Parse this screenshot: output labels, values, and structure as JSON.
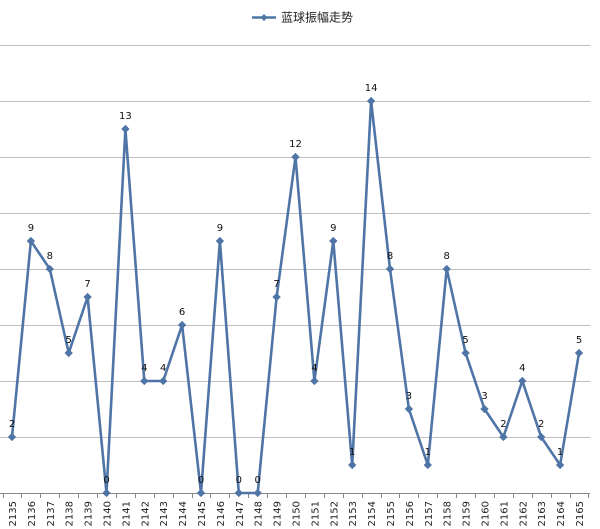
{
  "chart_data": {
    "type": "line",
    "title": "",
    "xlabel": "",
    "ylabel": "",
    "ylim": [
      0,
      16
    ],
    "grid": true,
    "legend": {
      "position": "top-center"
    },
    "colors": {
      "series": "#4F74A6",
      "grid": "#BFBFBF",
      "axis": "#888888"
    },
    "x": [
      "2135",
      "2136",
      "2137",
      "2138",
      "2139",
      "2140",
      "2141",
      "2142",
      "2143",
      "2144",
      "2145",
      "2146",
      "2147",
      "2148",
      "2149",
      "2150",
      "2151",
      "2152",
      "2153",
      "2154",
      "2155",
      "2156",
      "2157",
      "2158",
      "2159",
      "2160",
      "2161",
      "2162",
      "2163",
      "2164",
      "2165"
    ],
    "series": [
      {
        "name": "蓝球振幅走势",
        "values": [
          2,
          9,
          8,
          5,
          7,
          0,
          13,
          4,
          4,
          6,
          0,
          9,
          0,
          0,
          7,
          12,
          4,
          9,
          1,
          14,
          8,
          3,
          1,
          8,
          5,
          3,
          2,
          4,
          2,
          1,
          5
        ]
      }
    ]
  }
}
